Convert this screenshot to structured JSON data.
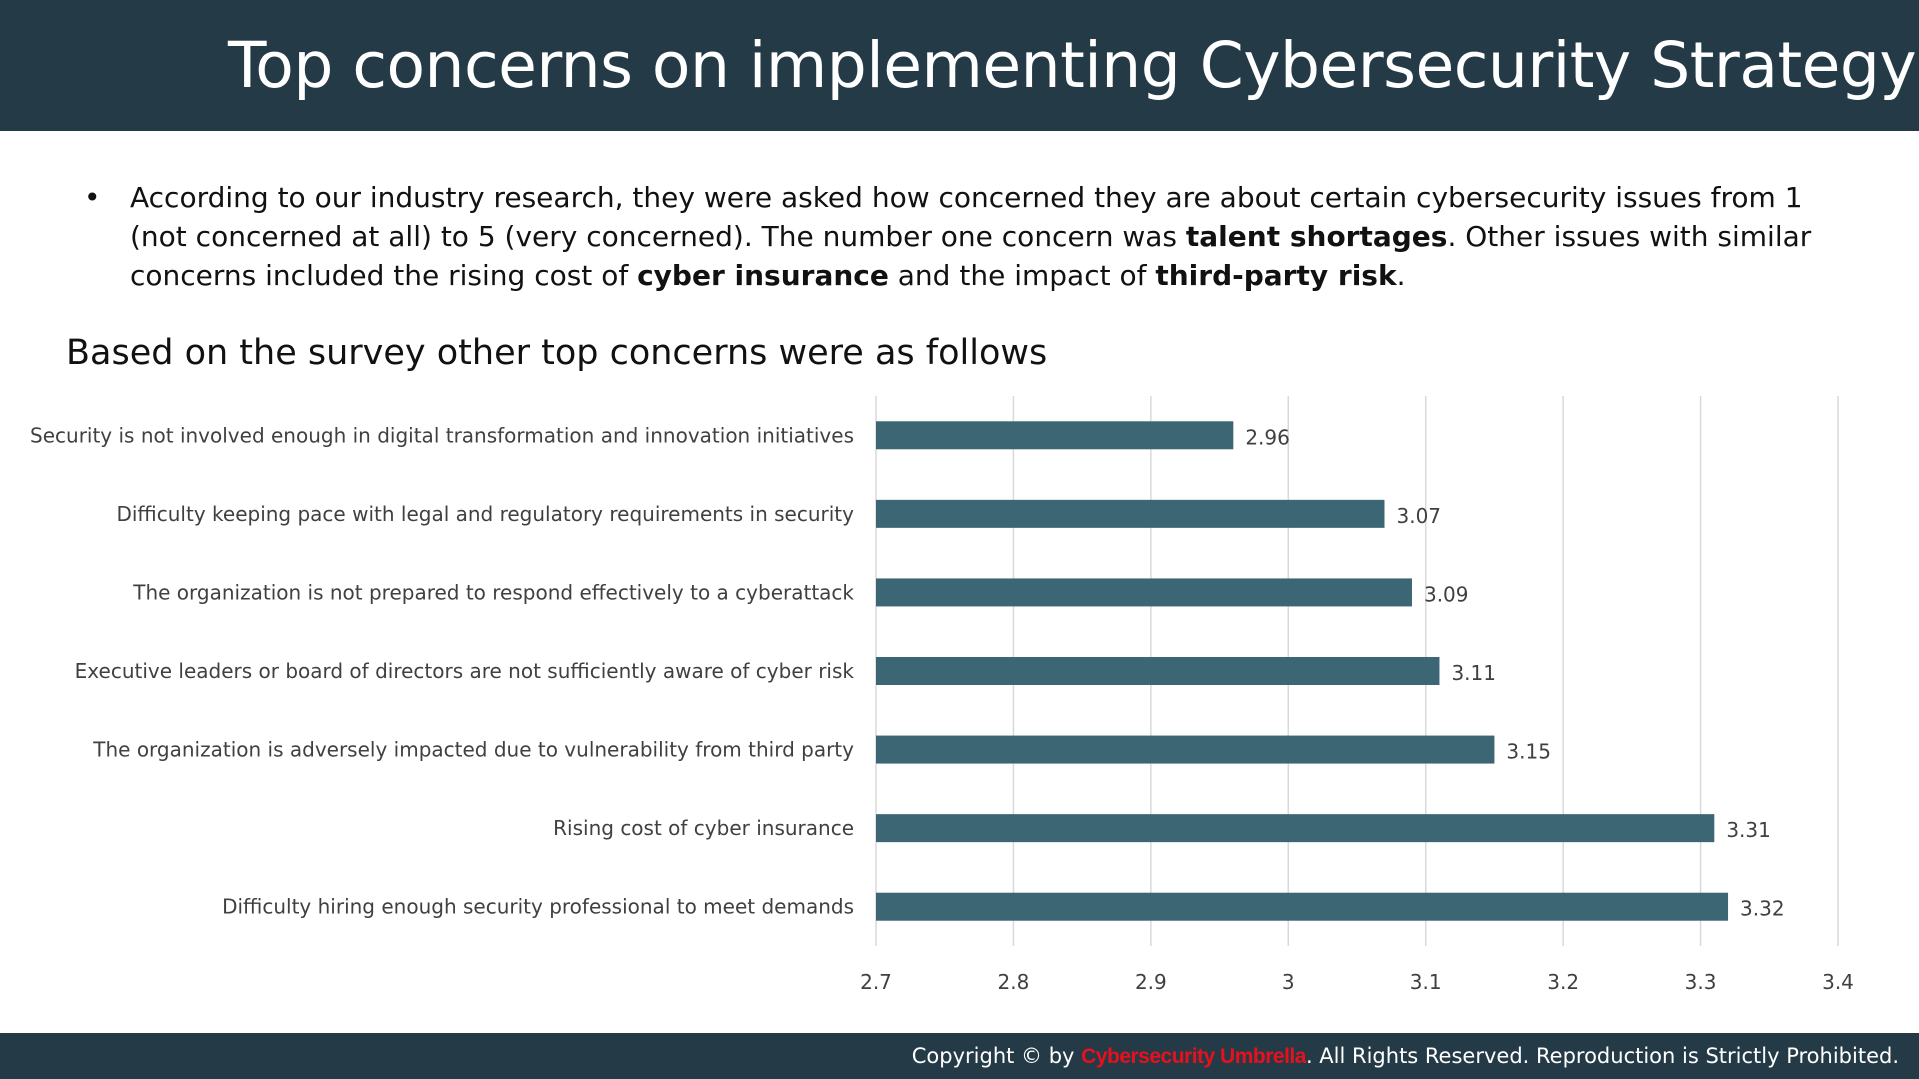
{
  "header": {
    "title": "Top concerns on implementing Cybersecurity Strategy"
  },
  "intro": {
    "bullet": "•",
    "part1": "According to our industry research, they were asked how concerned they are about certain cybersecurity issues from 1 (not concerned at all) to 5 (very concerned). The number one concern was ",
    "bold1": "talent shortages",
    "part2": ". Other issues with similar concerns included the rising cost of ",
    "bold2": "cyber insurance",
    "part3": " and the impact of ",
    "bold3": "third-party risk",
    "part4": "."
  },
  "subheading": "Based on the survey other top concerns were as follows",
  "chart_data": {
    "type": "bar",
    "orientation": "horizontal",
    "categories": [
      "Security is not involved enough in digital transformation and innovation initiatives",
      "Difficulty keeping pace with legal and regulatory requirements in security",
      "The organization is not prepared to respond effectively to a cyberattack",
      "Executive leaders or board of directors are not sufficiently aware of cyber risk",
      "The organization is adversely impacted due to vulnerability from third party",
      "Rising cost of cyber insurance",
      "Difficulty hiring enough security professional to meet demands"
    ],
    "values": [
      2.96,
      3.07,
      3.09,
      3.11,
      3.15,
      3.31,
      3.32
    ],
    "value_labels": [
      "2.96",
      "3.07",
      "3.09",
      "3.11",
      "3.15",
      "3.31",
      "3.32"
    ],
    "xlim": [
      2.7,
      3.4
    ],
    "xticks": [
      2.7,
      2.8,
      2.9,
      3.0,
      3.1,
      3.2,
      3.3,
      3.4
    ],
    "xtick_labels": [
      "2.7",
      "2.8",
      "2.9",
      "3",
      "3.1",
      "3.2",
      "3.3",
      "3.4"
    ],
    "grid": "vertical",
    "legend": "none",
    "bar_color": "#3d6674",
    "grid_color": "#d9d9d9"
  },
  "footer": {
    "prefix": "Copyright © by ",
    "brand": "Cybersecurity Umbrella",
    "suffix": ". All Rights Reserved. Reproduction is Strictly Prohibited."
  },
  "colors": {
    "header_bg": "#243b47",
    "brand_red": "#e8101c"
  }
}
